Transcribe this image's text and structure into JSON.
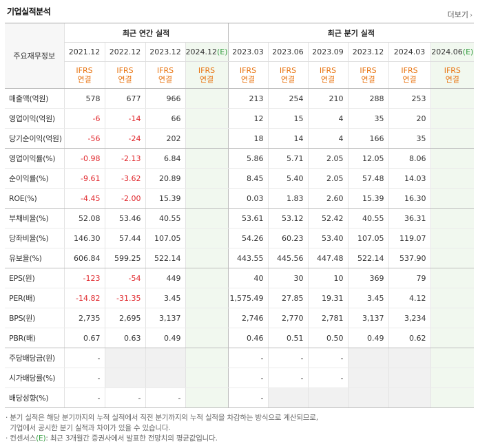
{
  "title": "기업실적분석",
  "more_label": "더보기",
  "header": {
    "row_label": "주요재무정보",
    "annual_group": "최근 연간 실적",
    "quarter_group": "최근 분기 실적",
    "annual_periods": [
      "2021.12",
      "2022.12",
      "2023.12",
      "2024.12"
    ],
    "quarter_periods": [
      "2023.03",
      "2023.06",
      "2023.09",
      "2023.12",
      "2024.03",
      "2024.06"
    ],
    "estimate_mark": "(E)",
    "standard_line1": "IFRS",
    "standard_line2": "연결"
  },
  "rows": [
    {
      "label": "매출액(억원)",
      "values": [
        "578",
        "677",
        "966",
        "",
        "213",
        "254",
        "210",
        "288",
        "253",
        ""
      ]
    },
    {
      "label": "영업이익(억원)",
      "values": [
        "-6",
        "-14",
        "66",
        "",
        "12",
        "15",
        "4",
        "35",
        "20",
        ""
      ]
    },
    {
      "label": "당기순이익(억원)",
      "values": [
        "-56",
        "-24",
        "202",
        "",
        "18",
        "14",
        "4",
        "166",
        "35",
        ""
      ]
    },
    {
      "label": "영업이익률(%)",
      "values": [
        "-0.98",
        "-2.13",
        "6.84",
        "",
        "5.86",
        "5.71",
        "2.05",
        "12.05",
        "8.06",
        ""
      ]
    },
    {
      "label": "순이익률(%)",
      "values": [
        "-9.61",
        "-3.62",
        "20.89",
        "",
        "8.45",
        "5.40",
        "2.05",
        "57.48",
        "14.03",
        ""
      ]
    },
    {
      "label": "ROE(%)",
      "values": [
        "-4.45",
        "-2.00",
        "15.39",
        "",
        "0.03",
        "1.83",
        "2.60",
        "15.39",
        "16.30",
        ""
      ]
    },
    {
      "label": "부채비율(%)",
      "values": [
        "52.08",
        "53.46",
        "40.55",
        "",
        "53.61",
        "53.12",
        "52.42",
        "40.55",
        "36.31",
        ""
      ]
    },
    {
      "label": "당좌비율(%)",
      "values": [
        "146.30",
        "57.44",
        "107.05",
        "",
        "54.26",
        "60.23",
        "53.40",
        "107.05",
        "119.07",
        ""
      ]
    },
    {
      "label": "유보율(%)",
      "values": [
        "606.84",
        "599.25",
        "522.14",
        "",
        "443.55",
        "445.56",
        "447.48",
        "522.14",
        "537.90",
        ""
      ]
    },
    {
      "label": "EPS(원)",
      "values": [
        "-123",
        "-54",
        "449",
        "",
        "40",
        "30",
        "10",
        "369",
        "79",
        ""
      ]
    },
    {
      "label": "PER(배)",
      "values": [
        "-14.82",
        "-31.35",
        "3.45",
        "",
        "1,575.49",
        "27.85",
        "19.31",
        "3.45",
        "4.12",
        ""
      ]
    },
    {
      "label": "BPS(원)",
      "values": [
        "2,735",
        "2,695",
        "3,137",
        "",
        "2,746",
        "2,770",
        "2,781",
        "3,137",
        "3,234",
        ""
      ]
    },
    {
      "label": "PBR(배)",
      "values": [
        "0.67",
        "0.63",
        "0.49",
        "",
        "0.46",
        "0.51",
        "0.50",
        "0.49",
        "0.62",
        ""
      ]
    },
    {
      "label": "주당배당금(원)",
      "values": [
        "-",
        "",
        "",
        "",
        "-",
        "-",
        "-",
        "",
        "",
        ""
      ]
    },
    {
      "label": "시가배당률(%)",
      "values": [
        "-",
        "",
        "",
        "",
        "-",
        "-",
        "-",
        "",
        "",
        ""
      ]
    },
    {
      "label": "배당성향(%)",
      "values": [
        "-",
        "-",
        "-",
        "",
        "-",
        "",
        "",
        "",
        "",
        ""
      ]
    }
  ],
  "notes": [
    "분기 실적은 해당 분기까지의 누적 실적에서 직전 분기까지의 누적 실적을 차감하는 방식으로 계산되므로,",
    "기업에서 공시한 분기 실적과 차이가 있을 수 있습니다.",
    "컨센서스",
    "(E)",
    ": 최근 3개월간 증권사에서 발표한 전망치의 평균값입니다."
  ]
}
